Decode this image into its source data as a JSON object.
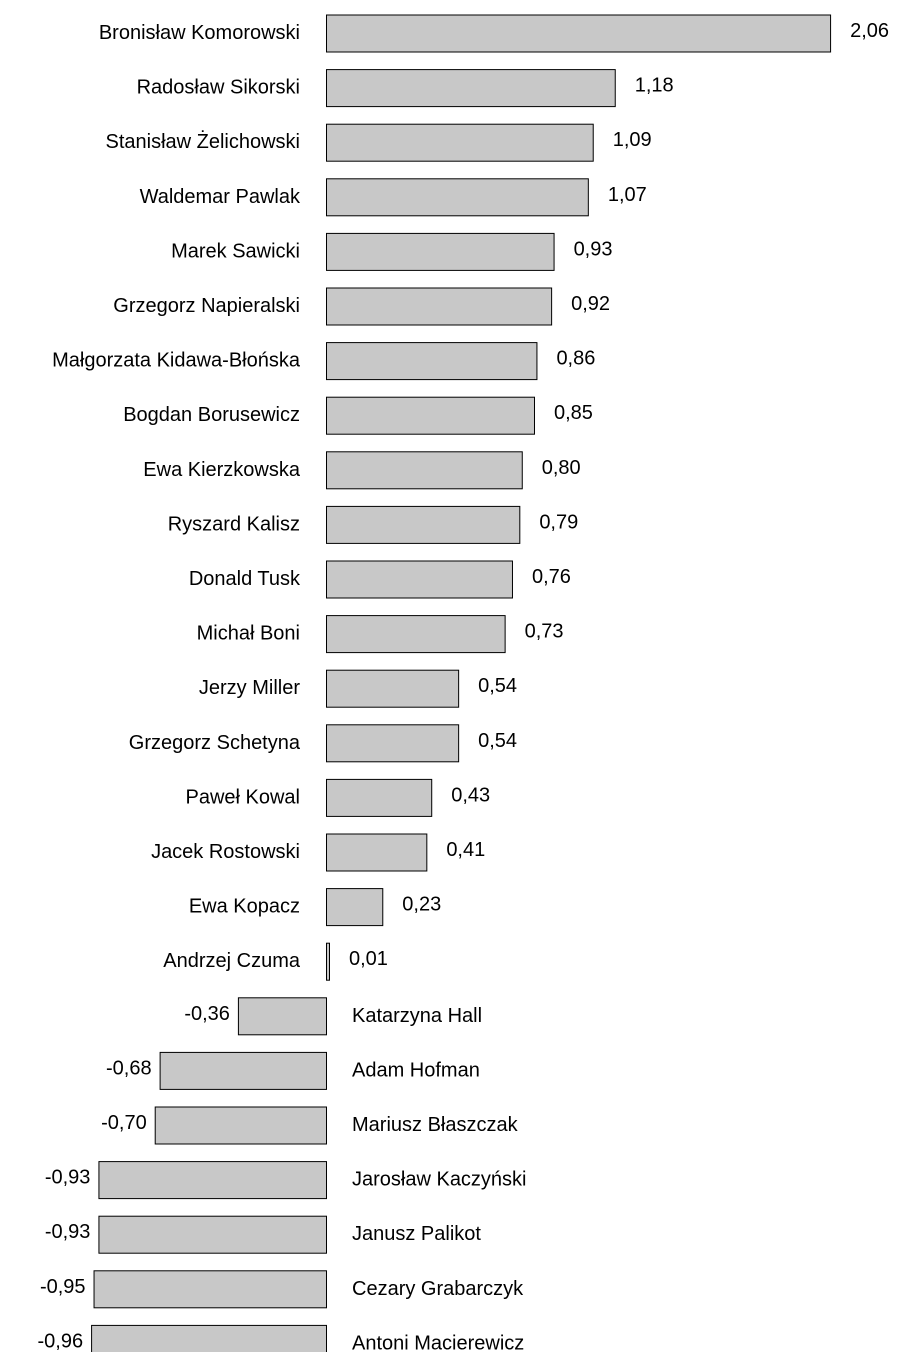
{
  "chart_data": {
    "type": "bar",
    "orientation": "horizontal",
    "bar_color": "#c8c8c8",
    "bar_border_color": "#000000",
    "categories": [
      "Bronisław Komorowski",
      "Radosław Sikorski",
      "Stanisław Żelichowski",
      "Waldemar Pawlak",
      "Marek Sawicki",
      "Grzegorz Napieralski",
      "Małgorzata Kidawa-Błońska",
      "Bogdan Borusewicz",
      "Ewa Kierzkowska",
      "Ryszard Kalisz",
      "Donald Tusk",
      "Michał Boni",
      "Jerzy Miller",
      "Grzegorz Schetyna",
      "Paweł Kowal",
      "Jacek Rostowski",
      "Ewa Kopacz",
      "Andrzej Czuma",
      "Katarzyna Hall",
      "Adam Hofman",
      "Mariusz Błaszczak",
      "Jarosław Kaczyński",
      "Janusz Palikot",
      "Cezary Grabarczyk",
      "Antoni Macierewicz"
    ],
    "values": [
      2.06,
      1.18,
      1.09,
      1.07,
      0.93,
      0.92,
      0.86,
      0.85,
      0.8,
      0.79,
      0.76,
      0.73,
      0.54,
      0.54,
      0.43,
      0.41,
      0.23,
      0.01,
      -0.36,
      -0.68,
      -0.7,
      -0.93,
      -0.93,
      -0.95,
      -0.96
    ],
    "value_labels": [
      "2,06",
      "1,18",
      "1,09",
      "1,07",
      "0,93",
      "0,92",
      "0,86",
      "0,85",
      "0,80",
      "0,79",
      "0,76",
      "0,73",
      "0,54",
      "0,54",
      "0,43",
      "0,41",
      "0,23",
      "0,01",
      "-0,36",
      "-0,68",
      "-0,70",
      "-0,93",
      "-0,93",
      "-0,95",
      "-0,96"
    ],
    "title": "",
    "xlabel": "",
    "ylabel": "",
    "grid": false,
    "legend": "none"
  }
}
